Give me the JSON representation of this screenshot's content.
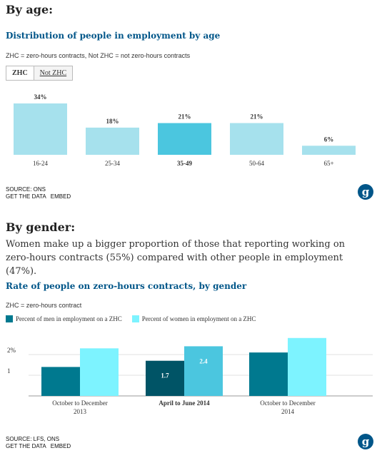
{
  "age": {
    "heading": "By age:",
    "title": "Distribution of people in employment by age",
    "key": "ZHC = zero-hours contracts, Not ZHC = not zero-hours contracts",
    "tabs": [
      {
        "label": "ZHC"
      },
      {
        "label": "Not ZHC"
      }
    ],
    "source": "SOURCE: ONS",
    "get_data": "GET THE DATA",
    "embed": "EMBED"
  },
  "gender": {
    "heading": "By gender:",
    "description": "Women make up a bigger proportion of those that reporting working on zero-hours contracts (55%) compared with other people in employment (47%).",
    "title": "Rate of people on zero-hours contracts, by gender",
    "key": "ZHC = zero-hours contract",
    "source": "SOURCE: LFS, ONS",
    "get_data": "GET THE DATA",
    "embed": "EMBED"
  },
  "logo_glyph": "g",
  "colors": {
    "age_bar": "#a6e1ed",
    "age_bar_highlight": "#4bc6df",
    "men": "#00798f",
    "men_highlight": "#005466",
    "women": "#7df3ff",
    "women_highlight": "#4bc6df",
    "title": "#005689"
  },
  "chart_data": [
    {
      "type": "bar",
      "title": "Distribution of people in employment by age",
      "categories": [
        "16-24",
        "25-34",
        "35-49",
        "50-64",
        "65+"
      ],
      "values": [
        34,
        18,
        21,
        21,
        6
      ],
      "value_labels": [
        "34%",
        "18%",
        "21%",
        "21%",
        "6%"
      ],
      "highlighted_category": "35-49",
      "ylim": [
        0,
        34
      ],
      "grid": false
    },
    {
      "type": "bar",
      "title": "Rate of people on zero-hours contracts, by gender",
      "categories": [
        "October to December 2013",
        "April to June 2014",
        "October to December 2014"
      ],
      "series": [
        {
          "name": "Percent of men in employment on a ZHC",
          "values": [
            1.4,
            1.7,
            2.1
          ]
        },
        {
          "name": "Percent of women in employment on a ZHC",
          "values": [
            2.3,
            2.4,
            2.8
          ]
        }
      ],
      "value_labels": {
        "April to June 2014": [
          "1.7",
          "2.4"
        ]
      },
      "highlighted_category": "April to June 2014",
      "yticks": [
        "1",
        "2%"
      ],
      "ylim": [
        0,
        3
      ],
      "grid": true,
      "legend_position": "top-left"
    }
  ]
}
